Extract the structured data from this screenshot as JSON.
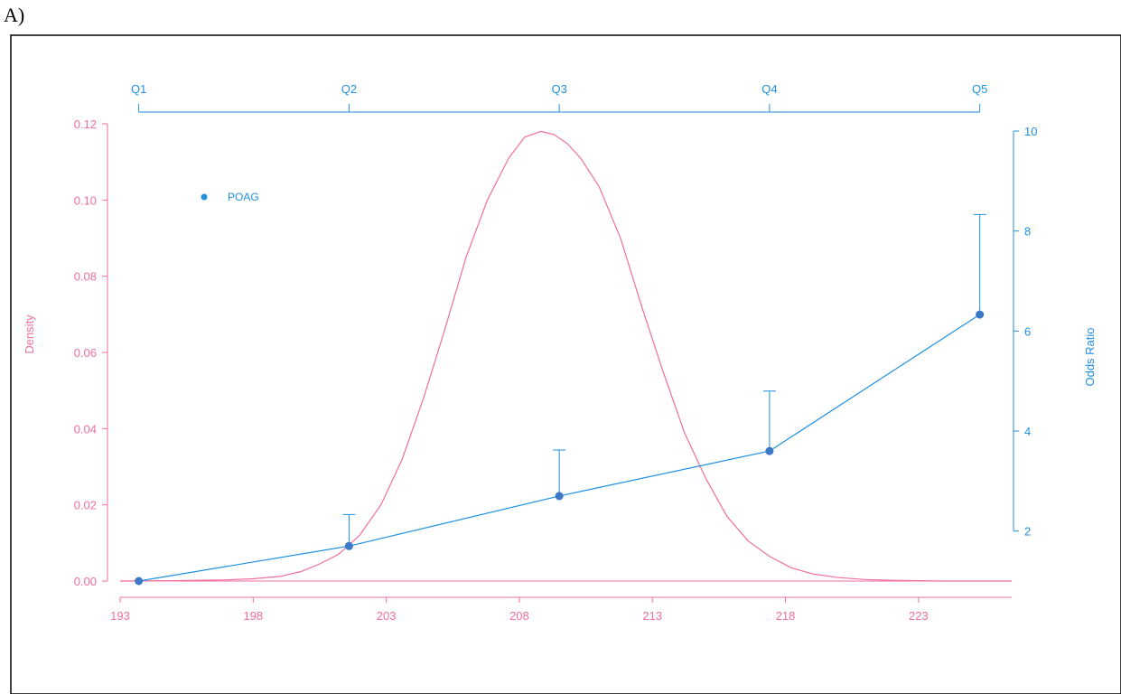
{
  "panel_label": "A)",
  "chart_data": {
    "type": "line",
    "left_axis": {
      "label": "Density",
      "ylim": [
        0,
        0.12
      ],
      "ticks": [
        0.0,
        0.02,
        0.04,
        0.06,
        0.08,
        0.1,
        0.12
      ],
      "tick_labels": [
        "0.00",
        "0.02",
        "0.04",
        "0.06",
        "0.08",
        "0.10",
        "0.12"
      ],
      "color": "#f06ea0"
    },
    "right_axis": {
      "label": "Odds Ratio",
      "ylim": [
        1,
        10
      ],
      "ticks": [
        2,
        4,
        6,
        8,
        10
      ],
      "tick_labels": [
        "2",
        "4",
        "6",
        "8",
        "10"
      ],
      "color": "#1f8fe0"
    },
    "bottom_axis": {
      "xlim": [
        193,
        226.5
      ],
      "ticks": [
        193,
        198,
        203,
        208,
        213,
        218,
        223
      ],
      "tick_labels": [
        "193",
        "198",
        "203",
        "208",
        "213",
        "218",
        "223"
      ],
      "color": "#f06ea0"
    },
    "top_axis": {
      "ticks": [
        193.7,
        201.6,
        209.5,
        217.4,
        225.3
      ],
      "tick_labels": [
        "Q1",
        "Q2",
        "Q3",
        "Q4",
        "Q5"
      ],
      "color": "#1f8fe0"
    },
    "density_series": {
      "color": "#f06ea0",
      "x": [
        193,
        195,
        197,
        198,
        199,
        199.8,
        200.5,
        201.2,
        202,
        202.8,
        203.6,
        204.4,
        205.2,
        206,
        206.8,
        207.6,
        208.2,
        208.8,
        209.3,
        209.8,
        210.3,
        211,
        211.8,
        212.6,
        213.4,
        214.2,
        215,
        215.8,
        216.6,
        217.4,
        218.2,
        219,
        220,
        221,
        222,
        223,
        224,
        225,
        226.5
      ],
      "y": [
        0,
        0.0001,
        0.0003,
        0.0006,
        0.0012,
        0.0025,
        0.0045,
        0.007,
        0.012,
        0.02,
        0.032,
        0.048,
        0.066,
        0.085,
        0.1,
        0.111,
        0.1165,
        0.118,
        0.1172,
        0.1148,
        0.111,
        0.1035,
        0.09,
        0.072,
        0.055,
        0.039,
        0.027,
        0.017,
        0.0105,
        0.0065,
        0.0035,
        0.0019,
        0.0009,
        0.0004,
        0.0002,
        0.0001,
        0,
        0,
        0
      ]
    },
    "odds_series": {
      "name": "POAG",
      "color": "#3b78c8",
      "points": [
        {
          "x": 193.7,
          "or": 1.0,
          "upper": null
        },
        {
          "x": 201.6,
          "or": 1.7,
          "upper": 2.33
        },
        {
          "x": 209.5,
          "or": 2.7,
          "upper": 3.62
        },
        {
          "x": 217.4,
          "or": 3.6,
          "upper": 4.8
        },
        {
          "x": 225.3,
          "or": 6.33,
          "upper": 8.33
        }
      ]
    },
    "legend": {
      "entries": [
        "POAG"
      ],
      "placement": "top-left"
    },
    "grid": false
  }
}
